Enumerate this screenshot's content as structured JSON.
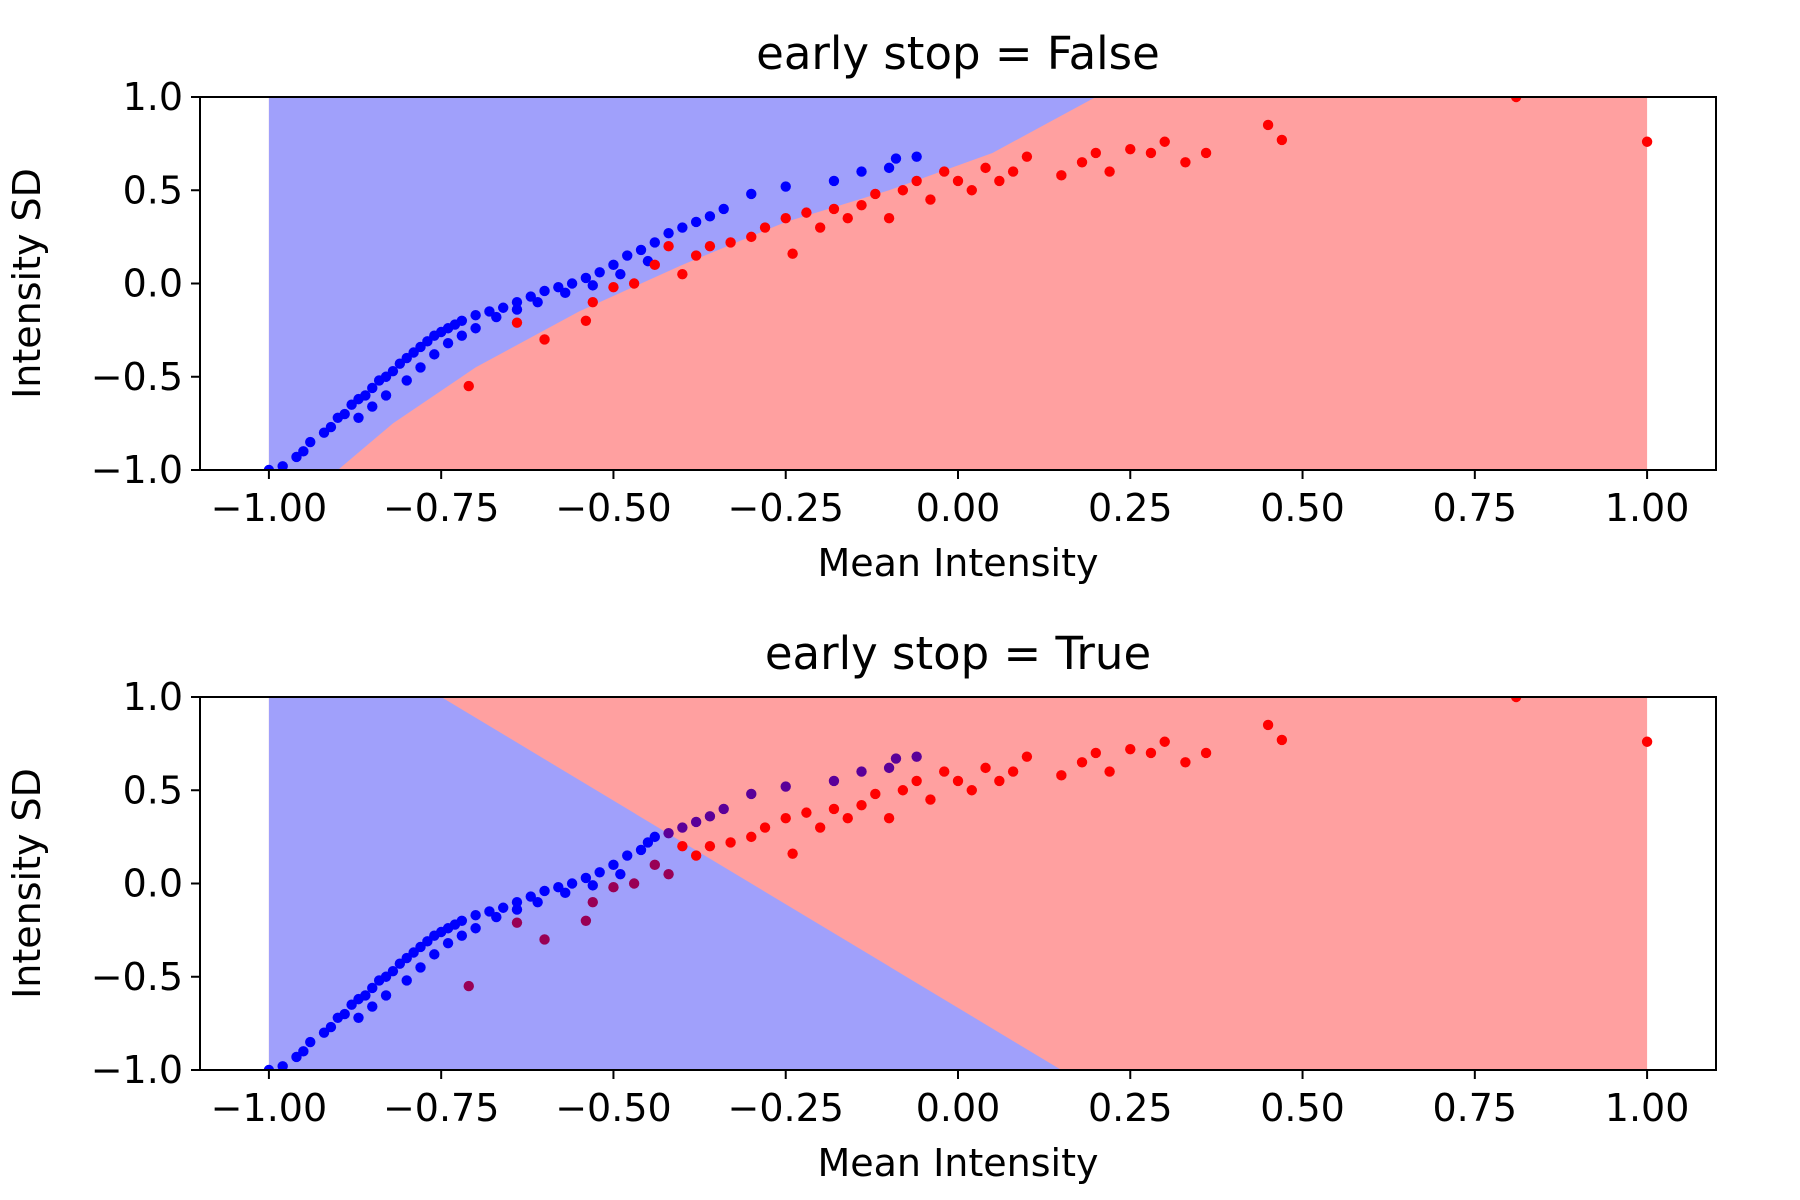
{
  "chart_data": [
    {
      "type": "scatter",
      "title": "early stop = False",
      "xlabel": "Mean Intensity",
      "ylabel": "Intensity SD",
      "xlim": [
        -1.1,
        1.1
      ],
      "ylim": [
        -1.0,
        1.0
      ],
      "xticks": [
        -1.0,
        -0.75,
        -0.5,
        -0.25,
        0.0,
        0.25,
        0.5,
        0.75,
        1.0
      ],
      "xtick_labels": [
        "−1.00",
        "−0.75",
        "−0.50",
        "−0.25",
        "0.00",
        "0.25",
        "0.50",
        "0.75",
        "1.00"
      ],
      "yticks": [
        -1.0,
        -0.5,
        0.0,
        0.5,
        1.0
      ],
      "ytick_labels": [
        "−1.0",
        "−0.5",
        "0.0",
        "0.5",
        "1.0"
      ],
      "background_regions": {
        "x_range": [
          -1.0,
          1.0
        ],
        "boundary": [
          [
            -0.9,
            -1.0
          ],
          [
            -0.82,
            -0.75
          ],
          [
            -0.7,
            -0.45
          ],
          [
            -0.55,
            -0.15
          ],
          [
            -0.4,
            0.1
          ],
          [
            -0.25,
            0.33
          ],
          [
            -0.1,
            0.5
          ],
          [
            0.05,
            0.7
          ],
          [
            0.2,
            1.0
          ]
        ],
        "upper_left_color": "#a0a0fb",
        "lower_right_color": "#ffa0a0"
      },
      "series": [
        {
          "color": "#0000ff",
          "points": [
            [
              -1.0,
              -1.0
            ],
            [
              -0.98,
              -0.98
            ],
            [
              -0.96,
              -0.93
            ],
            [
              -0.95,
              -0.9
            ],
            [
              -0.94,
              -0.85
            ],
            [
              -0.92,
              -0.8
            ],
            [
              -0.91,
              -0.77
            ],
            [
              -0.9,
              -0.72
            ],
            [
              -0.89,
              -0.7
            ],
            [
              -0.88,
              -0.65
            ],
            [
              -0.87,
              -0.62
            ],
            [
              -0.86,
              -0.6
            ],
            [
              -0.85,
              -0.56
            ],
            [
              -0.84,
              -0.52
            ],
            [
              -0.83,
              -0.5
            ],
            [
              -0.82,
              -0.47
            ],
            [
              -0.81,
              -0.43
            ],
            [
              -0.8,
              -0.4
            ],
            [
              -0.79,
              -0.37
            ],
            [
              -0.78,
              -0.34
            ],
            [
              -0.77,
              -0.31
            ],
            [
              -0.76,
              -0.28
            ],
            [
              -0.75,
              -0.26
            ],
            [
              -0.74,
              -0.24
            ],
            [
              -0.73,
              -0.22
            ],
            [
              -0.72,
              -0.2
            ],
            [
              -0.7,
              -0.17
            ],
            [
              -0.68,
              -0.15
            ],
            [
              -0.66,
              -0.13
            ],
            [
              -0.64,
              -0.1
            ],
            [
              -0.62,
              -0.07
            ],
            [
              -0.6,
              -0.04
            ],
            [
              -0.58,
              -0.02
            ],
            [
              -0.56,
              0.0
            ],
            [
              -0.54,
              0.03
            ],
            [
              -0.52,
              0.06
            ],
            [
              -0.5,
              0.1
            ],
            [
              -0.48,
              0.15
            ],
            [
              -0.46,
              0.18
            ],
            [
              -0.44,
              0.22
            ],
            [
              -0.42,
              0.27
            ],
            [
              -0.4,
              0.3
            ],
            [
              -0.38,
              0.33
            ],
            [
              -0.36,
              0.36
            ],
            [
              -0.34,
              0.4
            ],
            [
              -0.3,
              0.48
            ],
            [
              -0.25,
              0.52
            ],
            [
              -0.18,
              0.55
            ],
            [
              -0.14,
              0.6
            ],
            [
              -0.1,
              0.62
            ],
            [
              -0.09,
              0.67
            ],
            [
              -0.06,
              0.68
            ],
            [
              -0.87,
              -0.72
            ],
            [
              -0.85,
              -0.66
            ],
            [
              -0.83,
              -0.6
            ],
            [
              -0.8,
              -0.52
            ],
            [
              -0.78,
              -0.45
            ],
            [
              -0.76,
              -0.38
            ],
            [
              -0.74,
              -0.32
            ],
            [
              -0.72,
              -0.28
            ],
            [
              -0.7,
              -0.24
            ],
            [
              -0.67,
              -0.18
            ],
            [
              -0.64,
              -0.14
            ],
            [
              -0.61,
              -0.1
            ],
            [
              -0.57,
              -0.05
            ],
            [
              -0.53,
              -0.01
            ],
            [
              -0.49,
              0.05
            ],
            [
              -0.45,
              0.12
            ]
          ]
        },
        {
          "color": "#ff0000",
          "points": [
            [
              -0.71,
              -0.55
            ],
            [
              -0.64,
              -0.21
            ],
            [
              -0.6,
              -0.3
            ],
            [
              -0.54,
              -0.2
            ],
            [
              -0.53,
              -0.1
            ],
            [
              -0.5,
              -0.02
            ],
            [
              -0.47,
              0.0
            ],
            [
              -0.44,
              0.1
            ],
            [
              -0.42,
              0.2
            ],
            [
              -0.4,
              0.05
            ],
            [
              -0.38,
              0.15
            ],
            [
              -0.36,
              0.2
            ],
            [
              -0.33,
              0.22
            ],
            [
              -0.3,
              0.25
            ],
            [
              -0.28,
              0.3
            ],
            [
              -0.25,
              0.35
            ],
            [
              -0.24,
              0.16
            ],
            [
              -0.22,
              0.38
            ],
            [
              -0.2,
              0.3
            ],
            [
              -0.18,
              0.4
            ],
            [
              -0.16,
              0.35
            ],
            [
              -0.14,
              0.42
            ],
            [
              -0.12,
              0.48
            ],
            [
              -0.1,
              0.35
            ],
            [
              -0.08,
              0.5
            ],
            [
              -0.06,
              0.55
            ],
            [
              -0.04,
              0.45
            ],
            [
              -0.02,
              0.6
            ],
            [
              0.0,
              0.55
            ],
            [
              0.02,
              0.5
            ],
            [
              0.04,
              0.62
            ],
            [
              0.06,
              0.55
            ],
            [
              0.08,
              0.6
            ],
            [
              0.1,
              0.68
            ],
            [
              0.15,
              0.58
            ],
            [
              0.18,
              0.65
            ],
            [
              0.2,
              0.7
            ],
            [
              0.22,
              0.6
            ],
            [
              0.25,
              0.72
            ],
            [
              0.28,
              0.7
            ],
            [
              0.3,
              0.76
            ],
            [
              0.33,
              0.65
            ],
            [
              0.36,
              0.7
            ],
            [
              0.45,
              0.85
            ],
            [
              0.47,
              0.77
            ],
            [
              0.81,
              1.0
            ],
            [
              1.0,
              0.76
            ]
          ]
        }
      ]
    },
    {
      "type": "scatter",
      "title": "early stop = True",
      "xlabel": "Mean Intensity",
      "ylabel": "Intensity SD",
      "xlim": [
        -1.1,
        1.1
      ],
      "ylim": [
        -1.0,
        1.0
      ],
      "xticks": [
        -1.0,
        -0.75,
        -0.5,
        -0.25,
        0.0,
        0.25,
        0.5,
        0.75,
        1.0
      ],
      "xtick_labels": [
        "−1.00",
        "−0.75",
        "−0.50",
        "−0.25",
        "0.00",
        "0.25",
        "0.50",
        "0.75",
        "1.00"
      ],
      "yticks": [
        -1.0,
        -0.5,
        0.0,
        0.5,
        1.0
      ],
      "ytick_labels": [
        "−1.0",
        "−0.5",
        "0.0",
        "0.5",
        "1.0"
      ],
      "background_regions": {
        "x_range": [
          -1.0,
          1.0
        ],
        "boundary": [
          [
            -0.75,
            1.0
          ],
          [
            0.15,
            -1.0
          ]
        ],
        "upper_left_color": "#a0a0fb",
        "lower_right_color": "#ffa0a0",
        "left_region": "blue"
      },
      "series": [
        {
          "color": "#0000ff",
          "points": [
            [
              -1.0,
              -1.0
            ],
            [
              -0.98,
              -0.98
            ],
            [
              -0.96,
              -0.93
            ],
            [
              -0.95,
              -0.9
            ],
            [
              -0.94,
              -0.85
            ],
            [
              -0.92,
              -0.8
            ],
            [
              -0.91,
              -0.77
            ],
            [
              -0.9,
              -0.72
            ],
            [
              -0.89,
              -0.7
            ],
            [
              -0.88,
              -0.65
            ],
            [
              -0.87,
              -0.62
            ],
            [
              -0.86,
              -0.6
            ],
            [
              -0.85,
              -0.56
            ],
            [
              -0.84,
              -0.52
            ],
            [
              -0.83,
              -0.5
            ],
            [
              -0.82,
              -0.47
            ],
            [
              -0.81,
              -0.43
            ],
            [
              -0.8,
              -0.4
            ],
            [
              -0.79,
              -0.37
            ],
            [
              -0.78,
              -0.34
            ],
            [
              -0.77,
              -0.31
            ],
            [
              -0.76,
              -0.28
            ],
            [
              -0.75,
              -0.26
            ],
            [
              -0.74,
              -0.24
            ],
            [
              -0.73,
              -0.22
            ],
            [
              -0.72,
              -0.2
            ],
            [
              -0.7,
              -0.17
            ],
            [
              -0.68,
              -0.15
            ],
            [
              -0.66,
              -0.13
            ],
            [
              -0.64,
              -0.1
            ],
            [
              -0.62,
              -0.07
            ],
            [
              -0.6,
              -0.04
            ],
            [
              -0.58,
              -0.02
            ],
            [
              -0.56,
              0.0
            ],
            [
              -0.54,
              0.03
            ],
            [
              -0.52,
              0.06
            ],
            [
              -0.5,
              0.1
            ],
            [
              -0.48,
              0.15
            ],
            [
              -0.46,
              0.18
            ],
            [
              -0.87,
              -0.72
            ],
            [
              -0.85,
              -0.66
            ],
            [
              -0.83,
              -0.6
            ],
            [
              -0.8,
              -0.52
            ],
            [
              -0.78,
              -0.45
            ],
            [
              -0.76,
              -0.38
            ],
            [
              -0.74,
              -0.32
            ],
            [
              -0.72,
              -0.28
            ],
            [
              -0.7,
              -0.24
            ],
            [
              -0.67,
              -0.18
            ],
            [
              -0.64,
              -0.14
            ],
            [
              -0.61,
              -0.1
            ],
            [
              -0.57,
              -0.05
            ],
            [
              -0.53,
              -0.01
            ],
            [
              -0.49,
              0.05
            ],
            [
              -0.45,
              0.22
            ],
            [
              -0.44,
              0.25
            ]
          ]
        },
        {
          "color": "#5a0099",
          "points": [
            [
              -0.42,
              0.27
            ],
            [
              -0.4,
              0.3
            ],
            [
              -0.38,
              0.33
            ],
            [
              -0.36,
              0.36
            ],
            [
              -0.34,
              0.4
            ],
            [
              -0.3,
              0.48
            ],
            [
              -0.25,
              0.52
            ],
            [
              -0.18,
              0.55
            ],
            [
              -0.14,
              0.6
            ],
            [
              -0.1,
              0.62
            ],
            [
              -0.09,
              0.67
            ],
            [
              -0.06,
              0.68
            ]
          ]
        },
        {
          "color": "#990055",
          "points": [
            [
              -0.64,
              -0.21
            ],
            [
              -0.6,
              -0.3
            ],
            [
              -0.54,
              -0.2
            ],
            [
              -0.53,
              -0.1
            ],
            [
              -0.5,
              -0.02
            ],
            [
              -0.47,
              0.0
            ],
            [
              -0.44,
              0.1
            ],
            [
              -0.42,
              0.05
            ],
            [
              -0.71,
              -0.55
            ]
          ]
        },
        {
          "color": "#ff0000",
          "points": [
            [
              -0.4,
              0.2
            ],
            [
              -0.38,
              0.15
            ],
            [
              -0.36,
              0.2
            ],
            [
              -0.33,
              0.22
            ],
            [
              -0.3,
              0.25
            ],
            [
              -0.28,
              0.3
            ],
            [
              -0.25,
              0.35
            ],
            [
              -0.24,
              0.16
            ],
            [
              -0.22,
              0.38
            ],
            [
              -0.2,
              0.3
            ],
            [
              -0.18,
              0.4
            ],
            [
              -0.16,
              0.35
            ],
            [
              -0.14,
              0.42
            ],
            [
              -0.12,
              0.48
            ],
            [
              -0.1,
              0.35
            ],
            [
              -0.08,
              0.5
            ],
            [
              -0.06,
              0.55
            ],
            [
              -0.04,
              0.45
            ],
            [
              -0.02,
              0.6
            ],
            [
              0.0,
              0.55
            ],
            [
              0.02,
              0.5
            ],
            [
              0.04,
              0.62
            ],
            [
              0.06,
              0.55
            ],
            [
              0.08,
              0.6
            ],
            [
              0.1,
              0.68
            ],
            [
              0.15,
              0.58
            ],
            [
              0.18,
              0.65
            ],
            [
              0.2,
              0.7
            ],
            [
              0.22,
              0.6
            ],
            [
              0.25,
              0.72
            ],
            [
              0.28,
              0.7
            ],
            [
              0.3,
              0.76
            ],
            [
              0.33,
              0.65
            ],
            [
              0.36,
              0.7
            ],
            [
              0.45,
              0.85
            ],
            [
              0.47,
              0.77
            ],
            [
              0.81,
              1.0
            ],
            [
              1.0,
              0.76
            ]
          ]
        }
      ]
    }
  ]
}
